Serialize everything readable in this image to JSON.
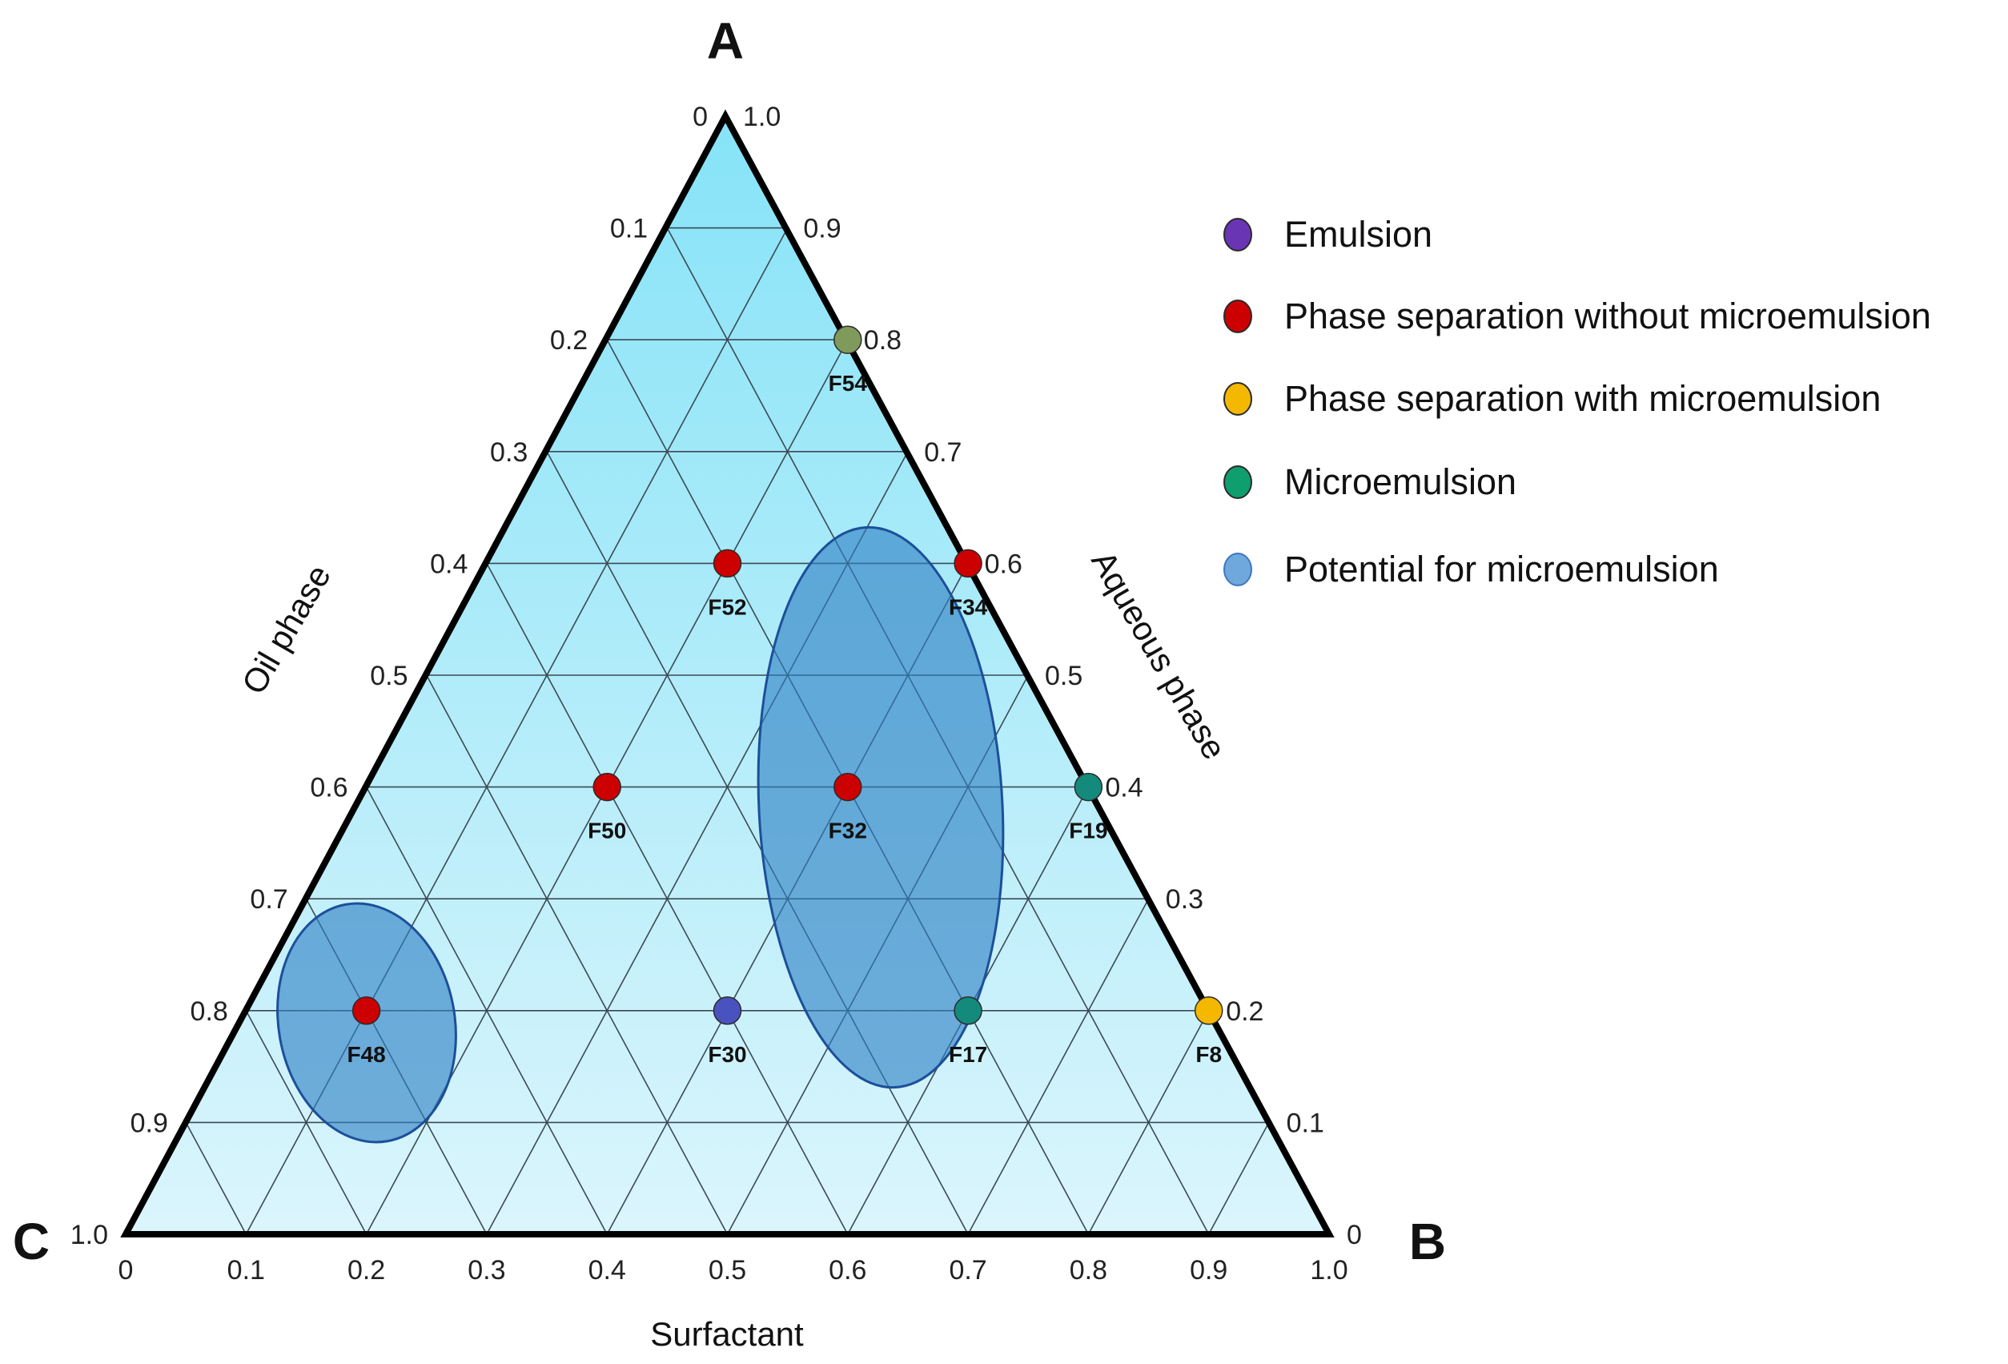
{
  "chart_data": {
    "type": "ternary",
    "vertices": {
      "top": "A",
      "right": "B",
      "left": "C"
    },
    "axes": {
      "left": {
        "title": "Oil phase",
        "ticks": [
          "0",
          "0.1",
          "0.2",
          "0.3",
          "0.4",
          "0.5",
          "0.6",
          "0.7",
          "0.8",
          "0.9",
          "1.0"
        ]
      },
      "right": {
        "title": "Aqueous phase",
        "ticks": [
          "1.0",
          "0.9",
          "0.8",
          "0.7",
          "0.6",
          "0.5",
          "0.4",
          "0.3",
          "0.2",
          "0.1",
          "0"
        ]
      },
      "bottom": {
        "title": "Surfactant",
        "ticks": [
          "0",
          "0.1",
          "0.2",
          "0.3",
          "0.4",
          "0.5",
          "0.6",
          "0.7",
          "0.8",
          "0.9",
          "1.0"
        ]
      }
    },
    "grid_step": 0.1,
    "categories": {
      "emulsion": {
        "label": "Emulsion",
        "color": "#6a35b5"
      },
      "sep_without": {
        "label": "Phase separation without microemulsion",
        "color": "#cc0000"
      },
      "sep_with": {
        "label": "Phase separation with microemulsion",
        "color": "#f5b800"
      },
      "microemulsion": {
        "label": "Microemulsion",
        "color": "#0f9e6e"
      },
      "potential": {
        "label": "Potential for microemulsion",
        "color": "#6fa8dc"
      }
    },
    "legend_order": [
      "emulsion",
      "sep_without",
      "sep_with",
      "microemulsion",
      "potential"
    ],
    "points": [
      {
        "name": "F48",
        "oil": 0.2,
        "surfactant": 0.1,
        "aqueous": 0.7,
        "category": "sep_without"
      },
      {
        "name": "F50",
        "oil": 0.4,
        "surfactant": 0.2,
        "aqueous": 0.4,
        "category": "sep_without"
      },
      {
        "name": "F30",
        "oil": 0.2,
        "surfactant": 0.4,
        "aqueous": 0.4,
        "category": "emulsion"
      },
      {
        "name": "F52",
        "oil": 0.6,
        "surfactant": 0.2,
        "aqueous": 0.2,
        "category": "sep_without"
      },
      {
        "name": "F32",
        "oil": 0.4,
        "surfactant": 0.4,
        "aqueous": 0.2,
        "category": "sep_without"
      },
      {
        "name": "F17",
        "oil": 0.2,
        "surfactant": 0.6,
        "aqueous": 0.2,
        "category": "microemulsion"
      },
      {
        "name": "F54",
        "oil": 0.8,
        "surfactant": 0.2,
        "aqueous": 0.0,
        "category": "microemulsion"
      },
      {
        "name": "F34",
        "oil": 0.6,
        "surfactant": 0.4,
        "aqueous": 0.0,
        "category": "sep_without"
      },
      {
        "name": "F19",
        "oil": 0.4,
        "surfactant": 0.6,
        "aqueous": 0.0,
        "category": "microemulsion"
      },
      {
        "name": "F8",
        "oil": 0.2,
        "surfactant": 0.8,
        "aqueous": 0.0,
        "category": "sep_with"
      }
    ],
    "regions": [
      {
        "name": "potential-region-right",
        "label": "Potential for microemulsion",
        "covers": [
          "F30",
          "F17",
          "F19"
        ]
      },
      {
        "name": "potential-region-left",
        "label": "Potential for microemulsion",
        "covers": [
          "F54"
        ]
      }
    ]
  }
}
